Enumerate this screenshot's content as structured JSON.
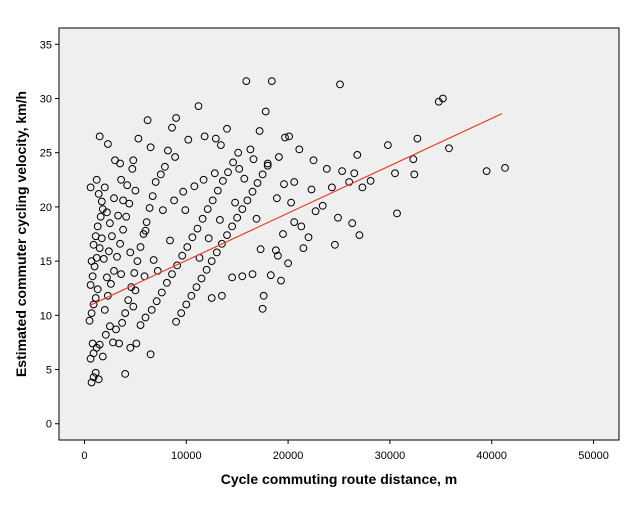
{
  "chart_data": {
    "type": "scatter",
    "xlabel": "Cycle commuting route distance, m",
    "ylabel": "Estimated commuter cycling velocity, km/h",
    "xlim": [
      -2500,
      52500
    ],
    "ylim": [
      -1.5,
      36.5
    ],
    "x_ticks": [
      0,
      10000,
      20000,
      30000,
      40000,
      50000
    ],
    "y_ticks": [
      0,
      5,
      10,
      15,
      20,
      25,
      30,
      35
    ],
    "grid": false,
    "plot_background": "#efefef",
    "marker": "open-circle",
    "marker_color": "#000000",
    "fit_line": {
      "color": "#e8412c",
      "x": [
        500,
        41000
      ],
      "y": [
        10.9,
        28.6
      ]
    },
    "points": [
      [
        700,
        3.8
      ],
      [
        900,
        4.3
      ],
      [
        1100,
        4.7
      ],
      [
        1400,
        4.1
      ],
      [
        600,
        6.0
      ],
      [
        900,
        6.5
      ],
      [
        1200,
        7.0
      ],
      [
        1500,
        7.3
      ],
      [
        1800,
        6.2
      ],
      [
        800,
        7.4
      ],
      [
        500,
        9.5
      ],
      [
        700,
        10.2
      ],
      [
        900,
        11.0
      ],
      [
        1100,
        11.6
      ],
      [
        1300,
        12.4
      ],
      [
        600,
        12.8
      ],
      [
        800,
        13.6
      ],
      [
        1000,
        14.5
      ],
      [
        1200,
        15.3
      ],
      [
        1500,
        16.2
      ],
      [
        700,
        15.0
      ],
      [
        900,
        16.5
      ],
      [
        1100,
        17.3
      ],
      [
        1300,
        18.2
      ],
      [
        1600,
        19.1
      ],
      [
        1800,
        19.8
      ],
      [
        600,
        21.8
      ],
      [
        1200,
        22.5
      ],
      [
        1400,
        21.2
      ],
      [
        1700,
        20.5
      ],
      [
        2000,
        21.8
      ],
      [
        2200,
        19.5
      ],
      [
        1500,
        26.5
      ],
      [
        2300,
        25.8
      ],
      [
        2000,
        10.5
      ],
      [
        2300,
        11.8
      ],
      [
        2600,
        12.9
      ],
      [
        2900,
        14.1
      ],
      [
        3200,
        15.4
      ],
      [
        3500,
        16.6
      ],
      [
        3800,
        17.9
      ],
      [
        4100,
        19.1
      ],
      [
        4400,
        20.3
      ],
      [
        2100,
        8.2
      ],
      [
        2500,
        9.0
      ],
      [
        2800,
        7.5
      ],
      [
        3100,
        8.7
      ],
      [
        3400,
        7.4
      ],
      [
        3700,
        9.3
      ],
      [
        4000,
        10.2
      ],
      [
        4300,
        11.4
      ],
      [
        4600,
        12.6
      ],
      [
        4900,
        13.9
      ],
      [
        5200,
        15.0
      ],
      [
        5500,
        16.3
      ],
      [
        5800,
        17.5
      ],
      [
        6100,
        18.6
      ],
      [
        6400,
        19.9
      ],
      [
        6700,
        21.0
      ],
      [
        7000,
        22.3
      ],
      [
        3000,
        24.3
      ],
      [
        3500,
        24.0
      ],
      [
        4200,
        22.0
      ],
      [
        4700,
        23.5
      ],
      [
        5000,
        21.5
      ],
      [
        6200,
        28.0
      ],
      [
        6500,
        25.5
      ],
      [
        7500,
        23.0
      ],
      [
        8200,
        25.2
      ],
      [
        8600,
        27.3
      ],
      [
        9000,
        28.2
      ],
      [
        4000,
        4.6
      ],
      [
        4500,
        7.0
      ],
      [
        5100,
        7.4
      ],
      [
        6500,
        6.4
      ],
      [
        5500,
        9.1
      ],
      [
        6000,
        9.8
      ],
      [
        6600,
        10.5
      ],
      [
        7100,
        11.3
      ],
      [
        7600,
        12.1
      ],
      [
        8100,
        13.0
      ],
      [
        8600,
        13.8
      ],
      [
        9100,
        14.6
      ],
      [
        9600,
        15.5
      ],
      [
        10100,
        16.3
      ],
      [
        10600,
        17.2
      ],
      [
        11100,
        18.0
      ],
      [
        11600,
        18.9
      ],
      [
        12100,
        19.8
      ],
      [
        12600,
        20.6
      ],
      [
        13100,
        21.5
      ],
      [
        13600,
        22.4
      ],
      [
        14100,
        23.2
      ],
      [
        14600,
        24.1
      ],
      [
        15100,
        25.0
      ],
      [
        9000,
        9.4
      ],
      [
        9500,
        10.2
      ],
      [
        10000,
        11.0
      ],
      [
        10500,
        11.8
      ],
      [
        11000,
        12.6
      ],
      [
        11500,
        13.4
      ],
      [
        12000,
        14.2
      ],
      [
        12500,
        15.0
      ],
      [
        13000,
        15.8
      ],
      [
        13500,
        16.6
      ],
      [
        14000,
        17.4
      ],
      [
        14500,
        18.2
      ],
      [
        15000,
        19.0
      ],
      [
        15500,
        19.8
      ],
      [
        16000,
        20.6
      ],
      [
        16500,
        21.4
      ],
      [
        17000,
        22.2
      ],
      [
        17500,
        23.0
      ],
      [
        18000,
        23.8
      ],
      [
        12500,
        11.6
      ],
      [
        13500,
        11.8
      ],
      [
        14500,
        13.5
      ],
      [
        15500,
        13.6
      ],
      [
        16500,
        13.8
      ],
      [
        17500,
        10.6
      ],
      [
        17600,
        11.8
      ],
      [
        18300,
        13.7
      ],
      [
        19000,
        15.5
      ],
      [
        10200,
        26.2
      ],
      [
        11200,
        29.3
      ],
      [
        11800,
        26.5
      ],
      [
        12900,
        26.3
      ],
      [
        13400,
        25.7
      ],
      [
        14000,
        27.2
      ],
      [
        15200,
        23.5
      ],
      [
        15900,
        31.6
      ],
      [
        16300,
        25.3
      ],
      [
        17200,
        27.0
      ],
      [
        17800,
        28.8
      ],
      [
        18400,
        31.6
      ],
      [
        19100,
        24.6
      ],
      [
        19700,
        26.4
      ],
      [
        20100,
        26.5
      ],
      [
        20600,
        22.3
      ],
      [
        21100,
        25.3
      ],
      [
        18900,
        20.8
      ],
      [
        19600,
        22.1
      ],
      [
        20300,
        20.4
      ],
      [
        21300,
        18.2
      ],
      [
        21500,
        16.2
      ],
      [
        22000,
        17.2
      ],
      [
        22700,
        19.6
      ],
      [
        23400,
        20.1
      ],
      [
        24300,
        21.8
      ],
      [
        24900,
        19.0
      ],
      [
        25100,
        31.3
      ],
      [
        25300,
        23.3
      ],
      [
        26000,
        22.3
      ],
      [
        26300,
        18.5
      ],
      [
        24600,
        16.5
      ],
      [
        26500,
        23.1
      ],
      [
        26800,
        24.8
      ],
      [
        27000,
        17.4
      ],
      [
        27300,
        21.8
      ],
      [
        28100,
        22.4
      ],
      [
        29800,
        25.7
      ],
      [
        30500,
        23.1
      ],
      [
        30700,
        19.4
      ],
      [
        32300,
        24.4
      ],
      [
        32700,
        26.3
      ],
      [
        32400,
        23.0
      ],
      [
        34800,
        29.7
      ],
      [
        35200,
        30.0
      ],
      [
        35800,
        25.4
      ],
      [
        39500,
        23.3
      ],
      [
        41300,
        23.6
      ],
      [
        19500,
        17.5
      ],
      [
        18800,
        16.0
      ],
      [
        20000,
        14.8
      ],
      [
        20600,
        18.6
      ],
      [
        22300,
        21.6
      ],
      [
        23800,
        23.5
      ],
      [
        22500,
        24.3
      ],
      [
        19300,
        13.2
      ],
      [
        18000,
        24.0
      ],
      [
        16600,
        24.4
      ],
      [
        14800,
        20.4
      ],
      [
        13300,
        18.8
      ],
      [
        12200,
        17.1
      ],
      [
        11300,
        15.3
      ],
      [
        9900,
        19.7
      ],
      [
        8800,
        20.6
      ],
      [
        7700,
        19.7
      ],
      [
        6800,
        15.1
      ],
      [
        5900,
        13.6
      ],
      [
        5000,
        12.3
      ],
      [
        4500,
        15.8
      ],
      [
        3800,
        20.6
      ],
      [
        3300,
        19.2
      ],
      [
        2700,
        17.3
      ],
      [
        2400,
        15.9
      ],
      [
        3600,
        13.8
      ],
      [
        4800,
        10.8
      ],
      [
        6000,
        17.8
      ],
      [
        7200,
        14.1
      ],
      [
        8400,
        16.9
      ],
      [
        10800,
        21.9
      ],
      [
        11700,
        22.5
      ],
      [
        12800,
        23.1
      ],
      [
        15700,
        22.6
      ],
      [
        16900,
        18.9
      ],
      [
        17300,
        16.1
      ],
      [
        7900,
        23.7
      ],
      [
        8900,
        24.6
      ],
      [
        9700,
        21.4
      ],
      [
        2200,
        13.5
      ],
      [
        1900,
        15.2
      ],
      [
        1700,
        17.1
      ],
      [
        2500,
        18.5
      ],
      [
        2900,
        20.8
      ],
      [
        3600,
        22.5
      ],
      [
        4800,
        24.3
      ],
      [
        5300,
        26.3
      ]
    ]
  }
}
